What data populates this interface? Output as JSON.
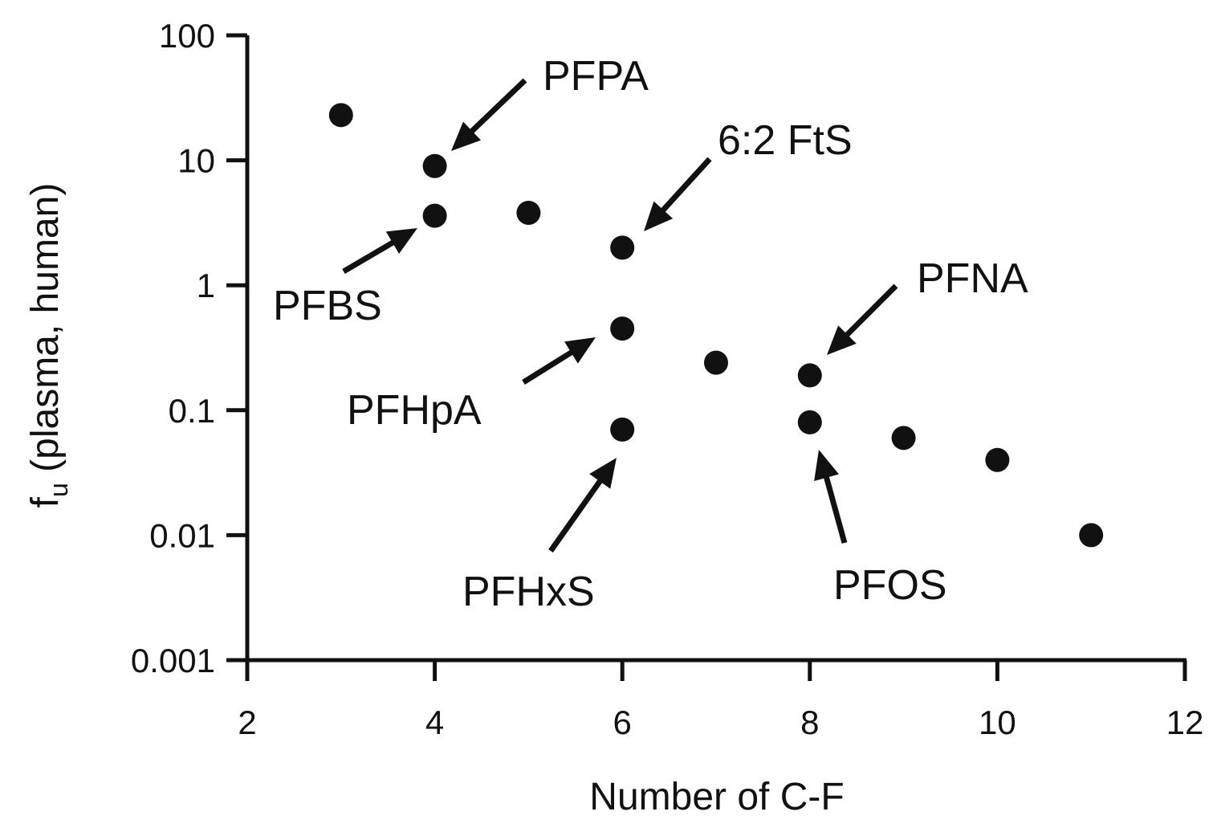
{
  "chart_data": {
    "type": "scatter",
    "xlabel": "Number of C-F",
    "ylabel_main": "f",
    "ylabel_sub": "u",
    "ylabel_rest": " (plasma, human)",
    "xlim": [
      2,
      12
    ],
    "ylim": [
      0.001,
      100
    ],
    "yscale": "log",
    "x_ticks": [
      2,
      4,
      6,
      8,
      10,
      12
    ],
    "x_tick_labels": [
      "2",
      "4",
      "6",
      "8",
      "10",
      "12"
    ],
    "y_ticks": [
      0.001,
      0.01,
      0.1,
      1,
      10,
      100
    ],
    "y_tick_labels": [
      "0.001",
      "0.01",
      "0.1",
      "1",
      "10",
      "100"
    ],
    "grid": false,
    "color": "#111111",
    "points": [
      {
        "x": 3,
        "y": 23
      },
      {
        "x": 4,
        "y": 9
      },
      {
        "x": 4,
        "y": 3.6
      },
      {
        "x": 5,
        "y": 3.8
      },
      {
        "x": 6,
        "y": 2.0
      },
      {
        "x": 6,
        "y": 0.45
      },
      {
        "x": 6,
        "y": 0.07
      },
      {
        "x": 7,
        "y": 0.24
      },
      {
        "x": 8,
        "y": 0.19
      },
      {
        "x": 8,
        "y": 0.08
      },
      {
        "x": 9,
        "y": 0.06
      },
      {
        "x": 10,
        "y": 0.04
      },
      {
        "x": 11,
        "y": 0.01
      }
    ],
    "annotations": [
      {
        "text": "PFPA",
        "x": 4,
        "y": 9
      },
      {
        "text": "PFBS",
        "x": 4,
        "y": 3.6
      },
      {
        "text": "6:2 FtS",
        "x": 6,
        "y": 2.0
      },
      {
        "text": "PFHpA",
        "x": 6,
        "y": 0.45
      },
      {
        "text": "PFHxS",
        "x": 6,
        "y": 0.07
      },
      {
        "text": "PFNA",
        "x": 8,
        "y": 0.19
      },
      {
        "text": "PFOS",
        "x": 8,
        "y": 0.08
      }
    ]
  }
}
